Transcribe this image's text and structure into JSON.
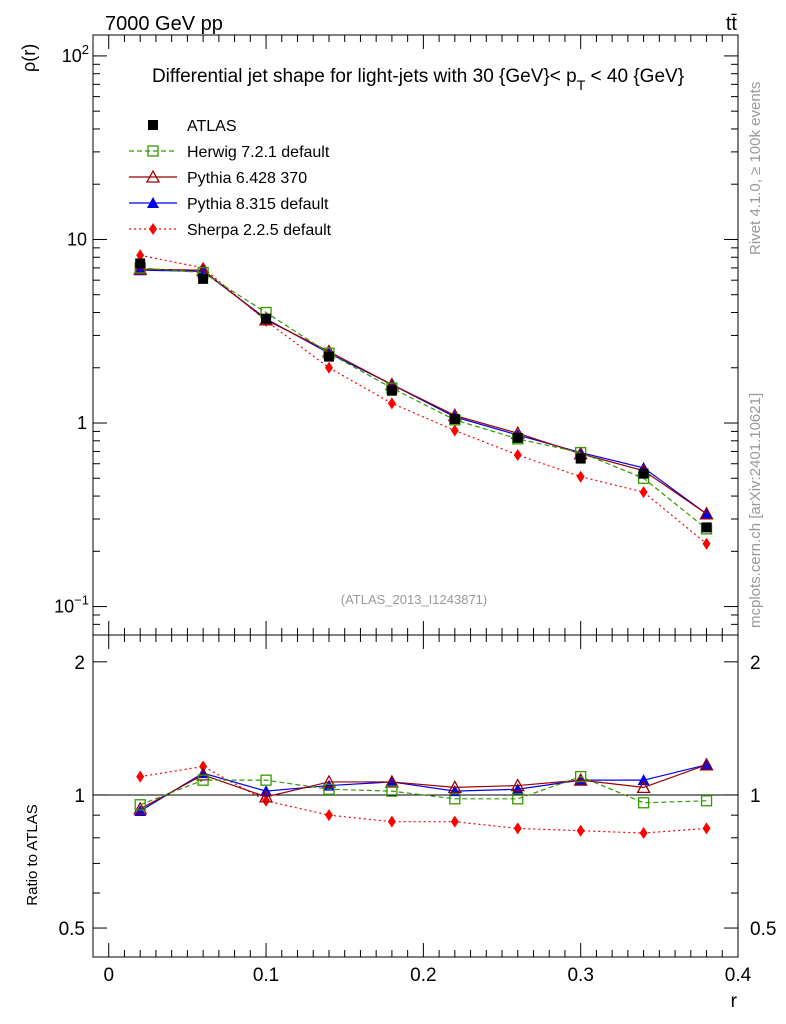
{
  "header": {
    "left": "7000 GeV pp",
    "right": "tt̄"
  },
  "side_labels": {
    "rivet": "Rivet 4.1.0, ≥ 100k events",
    "mcplots": "mcplots.cern.ch [arXiv:2401.10621]"
  },
  "watermark": "(ATLAS_2013_I1243871)",
  "colors": {
    "atlas": "#000000",
    "herwig": "#339900",
    "pythia6": "#990000",
    "pythia8": "#0000ee",
    "sherpa": "#ff0000"
  },
  "chart_data": [
    {
      "type": "line",
      "panel": "main",
      "title": "Differential jet shape for light-jets with 30 {GeV}< p_T < 40 {GeV}",
      "title_parts": {
        "pre": "Differential jet shape for light-jets with 30 {GeV}< p",
        "sub": "T",
        "post": " < 40 {GeV}"
      },
      "ylabel": "ρ(r)",
      "yscale": "log",
      "ylim": [
        0.07,
        130
      ],
      "xlim": [
        -0.01,
        0.4
      ],
      "y_ticks": [
        {
          "value": 0.1,
          "base": "10",
          "exp": "−1"
        },
        {
          "value": 1,
          "base": "1",
          "exp": ""
        },
        {
          "value": 10,
          "base": "10",
          "exp": ""
        },
        {
          "value": 100,
          "base": "10",
          "exp": "2"
        }
      ],
      "legend_position": "top-left",
      "x": [
        0.02,
        0.06,
        0.1,
        0.14,
        0.18,
        0.22,
        0.26,
        0.3,
        0.34,
        0.38
      ],
      "series": [
        {
          "key": "atlas",
          "name": "ATLAS",
          "style": "points",
          "marker": "square-filled",
          "values": [
            7.4,
            6.1,
            3.7,
            2.3,
            1.5,
            1.05,
            0.83,
            0.64,
            0.53,
            0.27
          ]
        },
        {
          "key": "herwig",
          "name": "Herwig 7.2.1 default",
          "style": "dashed",
          "marker": "square-open",
          "values": [
            7.0,
            6.6,
            4.0,
            2.4,
            1.55,
            1.04,
            0.82,
            0.69,
            0.5,
            0.265
          ]
        },
        {
          "key": "pythia6",
          "name": "Pythia 6.428 370",
          "style": "solid",
          "marker": "triangle-open",
          "values": [
            6.9,
            6.8,
            3.65,
            2.45,
            1.62,
            1.1,
            0.88,
            0.68,
            0.55,
            0.32
          ]
        },
        {
          "key": "pythia8",
          "name": "Pythia 8.315 default",
          "style": "solid",
          "marker": "triangle-filled",
          "values": [
            6.8,
            6.7,
            3.7,
            2.4,
            1.62,
            1.08,
            0.86,
            0.69,
            0.57,
            0.32
          ]
        },
        {
          "key": "sherpa",
          "name": "Sherpa 2.2.5 default",
          "style": "dotted",
          "marker": "diamond-filled",
          "values": [
            8.2,
            7.0,
            3.6,
            2.0,
            1.28,
            0.91,
            0.67,
            0.51,
            0.42,
            0.22
          ]
        }
      ]
    },
    {
      "type": "line",
      "panel": "ratio",
      "ylabel": "Ratio to ATLAS",
      "xlabel": "r",
      "yscale": "log",
      "ylim": [
        0.43,
        2.3
      ],
      "xlim": [
        -0.01,
        0.4
      ],
      "reference_line": 1,
      "y_ticks": [
        {
          "value": 0.5,
          "label": "0.5"
        },
        {
          "value": 1,
          "label": "1"
        },
        {
          "value": 2,
          "label": "2"
        }
      ],
      "x_ticks": [
        {
          "value": 0,
          "label": "0"
        },
        {
          "value": 0.1,
          "label": "0.1"
        },
        {
          "value": 0.2,
          "label": "0.2"
        },
        {
          "value": 0.3,
          "label": "0.3"
        },
        {
          "value": 0.4,
          "label": "0.4"
        }
      ],
      "x": [
        0.02,
        0.06,
        0.1,
        0.14,
        0.18,
        0.22,
        0.26,
        0.3,
        0.34,
        0.38
      ],
      "series": [
        {
          "key": "herwig",
          "name": "Herwig 7.2.1 default",
          "style": "dashed",
          "marker": "square-open",
          "values": [
            0.95,
            1.08,
            1.08,
            1.03,
            1.02,
            0.98,
            0.98,
            1.1,
            0.96,
            0.97
          ]
        },
        {
          "key": "pythia6",
          "name": "Pythia 6.428 370",
          "style": "solid",
          "marker": "triangle-open",
          "values": [
            0.93,
            1.11,
            0.99,
            1.07,
            1.07,
            1.04,
            1.05,
            1.08,
            1.04,
            1.17
          ]
        },
        {
          "key": "pythia8",
          "name": "Pythia 8.315 default",
          "style": "solid",
          "marker": "triangle-filled",
          "values": [
            0.92,
            1.12,
            1.02,
            1.05,
            1.07,
            1.02,
            1.03,
            1.08,
            1.08,
            1.17
          ]
        },
        {
          "key": "sherpa",
          "name": "Sherpa 2.2.5 default",
          "style": "dotted",
          "marker": "diamond-filled",
          "values": [
            1.1,
            1.16,
            0.97,
            0.9,
            0.87,
            0.87,
            0.84,
            0.83,
            0.82,
            0.84
          ]
        }
      ]
    }
  ]
}
